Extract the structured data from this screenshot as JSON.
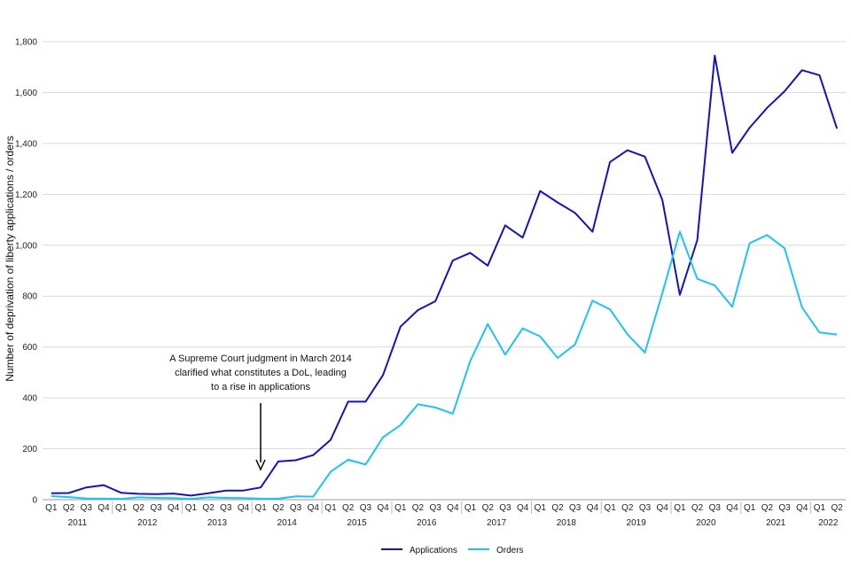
{
  "chart_data": {
    "type": "line",
    "title": "",
    "ylabel": "Number of deprivation of liberty applications / orders",
    "xlabel": "",
    "ylim": [
      0,
      1800
    ],
    "yticks": [
      0,
      200,
      400,
      600,
      800,
      1000,
      1200,
      1400,
      1600,
      1800
    ],
    "ytick_labels": [
      "0",
      "200",
      "400",
      "600",
      "800",
      "1,000",
      "1,200",
      "1,400",
      "1,600",
      "1,800"
    ],
    "grid": "horizontal",
    "legend_position": "bottom-center",
    "quarters": [
      "Q1",
      "Q2",
      "Q3",
      "Q4",
      "Q1",
      "Q2",
      "Q3",
      "Q4",
      "Q1",
      "Q2",
      "Q3",
      "Q4",
      "Q1",
      "Q2",
      "Q3",
      "Q4",
      "Q1",
      "Q2",
      "Q3",
      "Q4",
      "Q1",
      "Q2",
      "Q3",
      "Q4",
      "Q1",
      "Q2",
      "Q3",
      "Q4",
      "Q1",
      "Q2",
      "Q3",
      "Q4",
      "Q1",
      "Q2",
      "Q3",
      "Q4",
      "Q1",
      "Q2",
      "Q3",
      "Q4",
      "Q1",
      "Q2",
      "Q3",
      "Q4",
      "Q1",
      "Q2"
    ],
    "years": [
      {
        "label": "2011",
        "quarters": 4
      },
      {
        "label": "2012",
        "quarters": 4
      },
      {
        "label": "2013",
        "quarters": 4
      },
      {
        "label": "2014",
        "quarters": 4
      },
      {
        "label": "2015",
        "quarters": 4
      },
      {
        "label": "2016",
        "quarters": 4
      },
      {
        "label": "2017",
        "quarters": 4
      },
      {
        "label": "2018",
        "quarters": 4
      },
      {
        "label": "2019",
        "quarters": 4
      },
      {
        "label": "2020",
        "quarters": 4
      },
      {
        "label": "2021",
        "quarters": 4
      },
      {
        "label": "2022",
        "quarters": 2
      }
    ],
    "series": [
      {
        "name": "Applications",
        "color": "#1414b4",
        "values": [
          25,
          26,
          48,
          57,
          27,
          23,
          22,
          24,
          16,
          25,
          36,
          36,
          48,
          150,
          155,
          175,
          235,
          385,
          385,
          490,
          680,
          745,
          780,
          940,
          970,
          920,
          1078,
          1030,
          1213,
          1168,
          1127,
          1053,
          1327,
          1373,
          1348,
          1178,
          805,
          1020,
          1745,
          1363,
          1462,
          1540,
          1605,
          1688,
          1668,
          1458
        ]
      },
      {
        "name": "Orders",
        "color": "#1ec3f0",
        "values": [
          14,
          10,
          5,
          4,
          3,
          9,
          7,
          6,
          3,
          9,
          7,
          6,
          4,
          4,
          13,
          12,
          110,
          157,
          138,
          245,
          293,
          375,
          362,
          338,
          545,
          690,
          570,
          673,
          642,
          557,
          610,
          782,
          748,
          650,
          578,
          812,
          1053,
          868,
          842,
          758,
          1008,
          1040,
          988,
          755,
          657,
          649
        ]
      }
    ],
    "annotation": {
      "lines": [
        "A Supreme Court judgment in March 2014",
        "clarified what constitutes a DoL, leading",
        "to a rise in applications"
      ]
    }
  }
}
